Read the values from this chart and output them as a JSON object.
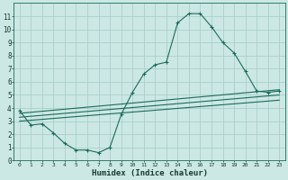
{
  "xlabel": "Humidex (Indice chaleur)",
  "xlim": [
    -0.5,
    23.5
  ],
  "ylim": [
    0,
    12
  ],
  "xticks": [
    0,
    1,
    2,
    3,
    4,
    5,
    6,
    7,
    8,
    9,
    10,
    11,
    12,
    13,
    14,
    15,
    16,
    17,
    18,
    19,
    20,
    21,
    22,
    23
  ],
  "yticks": [
    0,
    1,
    2,
    3,
    4,
    5,
    6,
    7,
    8,
    9,
    10,
    11
  ],
  "bg_color": "#cce8e4",
  "grid_color": "#aad0cc",
  "line_color": "#1a6b5a",
  "line1_x": [
    0,
    1,
    2,
    3,
    4,
    5,
    6,
    7,
    8,
    9,
    10,
    11,
    12,
    13,
    14,
    15,
    16,
    17,
    18,
    19,
    20,
    21,
    22,
    23
  ],
  "line1_y": [
    3.8,
    2.7,
    2.8,
    2.1,
    1.3,
    0.8,
    0.8,
    0.6,
    1.0,
    3.5,
    5.2,
    6.6,
    7.3,
    7.5,
    10.5,
    11.2,
    11.2,
    10.2,
    9.0,
    8.2,
    6.8,
    5.3,
    5.2,
    5.3
  ],
  "line2_x": [
    0,
    23
  ],
  "line2_y": [
    3.6,
    5.4
  ],
  "line3_x": [
    0,
    23
  ],
  "line3_y": [
    3.3,
    5.0
  ],
  "line4_x": [
    0,
    23
  ],
  "line4_y": [
    3.0,
    4.6
  ]
}
